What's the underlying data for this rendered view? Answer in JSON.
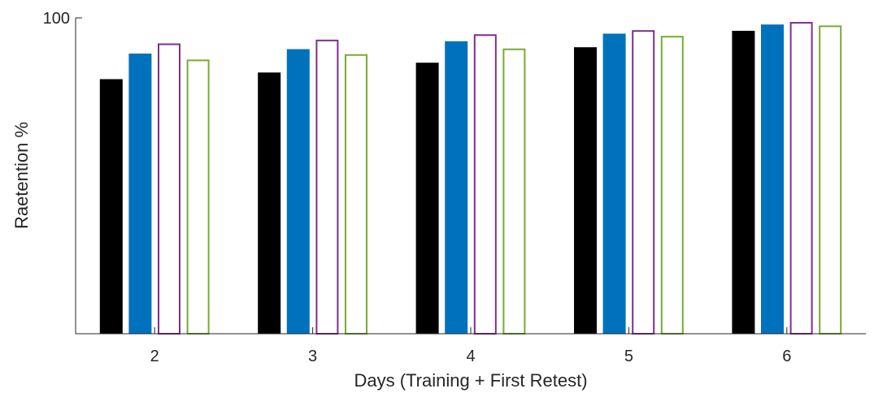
{
  "chart_data": {
    "type": "bar",
    "xlabel": "Days (Training + First Retest)",
    "ylabel": "Raetention %",
    "categories": [
      "2",
      "3",
      "4",
      "5",
      "6"
    ],
    "ylim": [
      0,
      100
    ],
    "yticks": [
      "100"
    ],
    "grid": false,
    "legend": "none",
    "series": [
      {
        "values": [
          80.6,
          82.7,
          85.8,
          90.7,
          95.9
        ],
        "color": "#000000",
        "style": "filled"
      },
      {
        "values": [
          88.7,
          90.1,
          92.6,
          95.0,
          97.9
        ],
        "color": "#0072BD",
        "style": "filled"
      },
      {
        "values": [
          91.9,
          93.1,
          94.8,
          96.1,
          98.7
        ],
        "color": "#7E2F8E",
        "style": "outline"
      },
      {
        "values": [
          86.8,
          88.5,
          90.3,
          94.3,
          97.6
        ],
        "color": "#77AC30",
        "style": "outline"
      }
    ]
  }
}
